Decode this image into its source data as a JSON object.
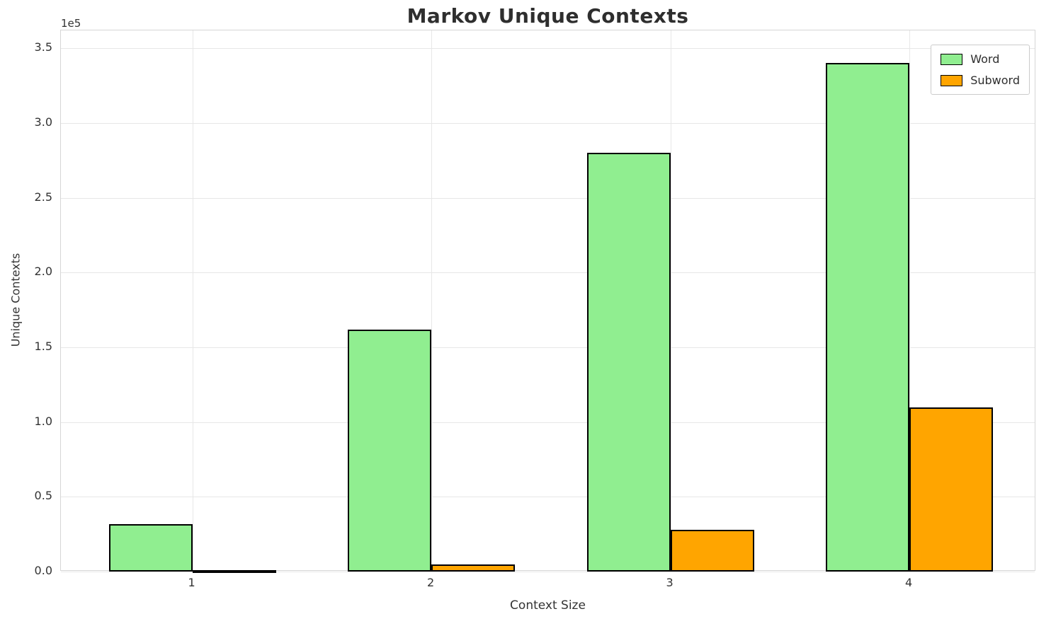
{
  "chart_data": {
    "type": "bar",
    "title": "Markov Unique Contexts",
    "xlabel": "Context Size",
    "ylabel": "Unique Contexts",
    "y_scale_label": "1e5",
    "categories": [
      "1",
      "2",
      "3",
      "4"
    ],
    "x": [
      1,
      2,
      3,
      4
    ],
    "series": [
      {
        "name": "Word",
        "color": "#90ee90",
        "offset": -0.175,
        "values": [
          31500,
          162000,
          280000,
          340000
        ]
      },
      {
        "name": "Subword",
        "color": "#ffa500",
        "offset": 0.175,
        "values": [
          1000,
          4500,
          28000,
          110000
        ]
      }
    ],
    "bar_width": 0.35,
    "bar_edge_color": "#000000",
    "xlim": [
      0.45,
      4.53
    ],
    "ylim": [
      0,
      362000
    ],
    "yticks": [
      {
        "value": 0,
        "label": "0.0"
      },
      {
        "value": 50000,
        "label": "0.5"
      },
      {
        "value": 100000,
        "label": "1.0"
      },
      {
        "value": 150000,
        "label": "1.5"
      },
      {
        "value": 200000,
        "label": "2.0"
      },
      {
        "value": 250000,
        "label": "2.5"
      },
      {
        "value": 300000,
        "label": "3.0"
      },
      {
        "value": 350000,
        "label": "3.5"
      }
    ],
    "grid": true,
    "legend_position": "upper right"
  },
  "colors": {
    "grid": "#e7e7e7",
    "spine": "#d6d6d6",
    "text": "#333333",
    "background": "#ffffff"
  }
}
